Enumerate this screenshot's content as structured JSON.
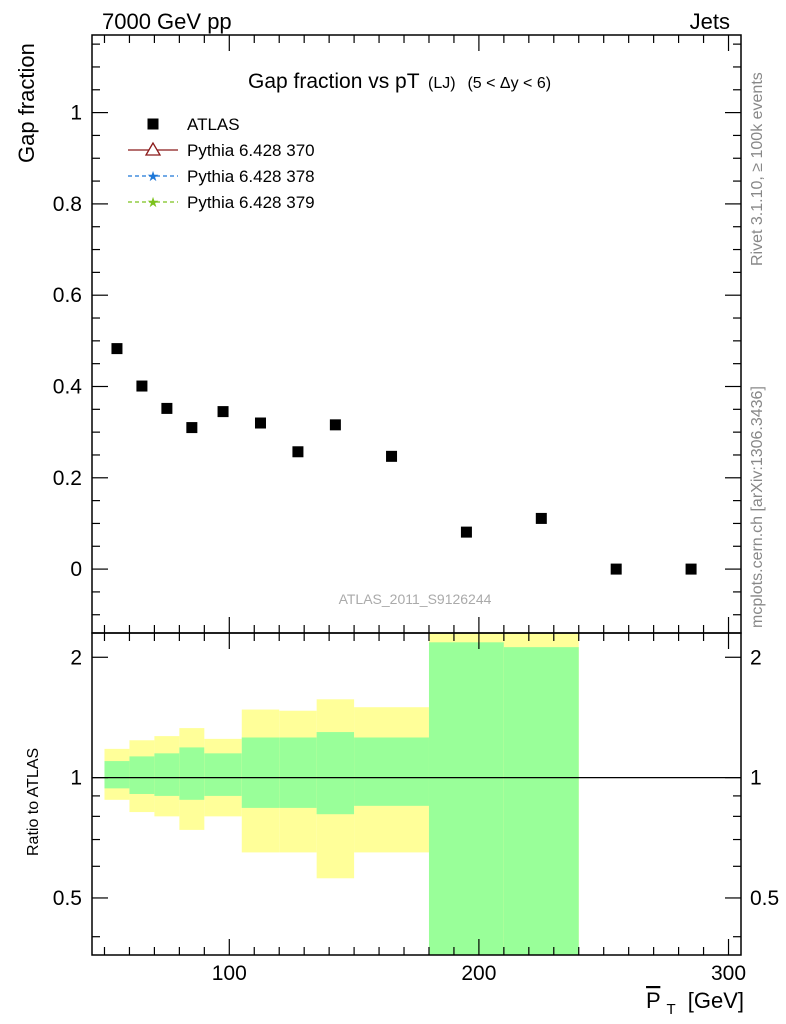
{
  "header": {
    "left": "7000 GeV pp",
    "right": "Jets"
  },
  "side_labels": {
    "rivet": "Rivet 3.1.10, ≥ 100k events",
    "mcplots": "mcplots.cern.ch [arXiv:1306.3436]"
  },
  "chart_data": {
    "type": "scatter",
    "title": "Gap fraction vs pT",
    "title_sub": "(LJ)",
    "title_cut": "(5 < Δy < 6)",
    "ylabel": "Gap fraction",
    "ratio_ylabel": "Ratio to ATLAS",
    "xlabel_symbol": "P",
    "xlabel_sub": "T",
    "xlabel_unit": "[GeV]",
    "watermark": "ATLAS_2011_S9126244",
    "xlim": [
      45,
      305
    ],
    "ylim": [
      -0.14,
      1.17
    ],
    "ratio_ylim": [
      0.36,
      2.3
    ],
    "x_ticks": [
      100,
      200,
      300
    ],
    "x_tick_labels": [
      "100",
      "200",
      "300"
    ],
    "y_ticks": [
      0,
      0.2,
      0.4,
      0.6,
      0.8,
      1
    ],
    "y_tick_labels": [
      "0",
      "0.2",
      "0.4",
      "0.6",
      "0.8",
      "1"
    ],
    "ratio_ticks": [
      0.5,
      1,
      2
    ],
    "ratio_tick_labels": [
      "0.5",
      "1",
      "2"
    ],
    "legend": [
      {
        "name": "ATLAS",
        "marker": "square",
        "color": "#000000"
      },
      {
        "name": "Pythia 6.428 370",
        "marker": "triangle",
        "color": "#8b1a1a"
      },
      {
        "name": "Pythia 6.428 378",
        "marker": "star",
        "color": "#1f78d8"
      },
      {
        "name": "Pythia 6.428 379",
        "marker": "star",
        "color": "#7cc21d"
      }
    ],
    "series": [
      {
        "name": "ATLAS",
        "x": [
          55,
          65,
          75,
          85,
          97.5,
          112.5,
          127.5,
          142.5,
          165,
          195,
          225,
          255,
          285
        ],
        "y": [
          0.483,
          0.401,
          0.352,
          0.31,
          0.345,
          0.32,
          0.257,
          0.316,
          0.247,
          0.081,
          0.111,
          0.0,
          0.0
        ]
      }
    ],
    "ratio_bands": [
      {
        "xlo": 50,
        "xhi": 60,
        "yellow": [
          0.88,
          1.18
        ],
        "green": [
          0.94,
          1.1
        ]
      },
      {
        "xlo": 60,
        "xhi": 70,
        "yellow": [
          0.82,
          1.24
        ],
        "green": [
          0.91,
          1.13
        ]
      },
      {
        "xlo": 70,
        "xhi": 80,
        "yellow": [
          0.8,
          1.27
        ],
        "green": [
          0.9,
          1.15
        ]
      },
      {
        "xlo": 80,
        "xhi": 90,
        "yellow": [
          0.74,
          1.33
        ],
        "green": [
          0.88,
          1.19
        ]
      },
      {
        "xlo": 90,
        "xhi": 105,
        "yellow": [
          0.8,
          1.25
        ],
        "green": [
          0.9,
          1.15
        ]
      },
      {
        "xlo": 105,
        "xhi": 120,
        "yellow": [
          0.65,
          1.48
        ],
        "green": [
          0.84,
          1.26
        ]
      },
      {
        "xlo": 120,
        "xhi": 135,
        "yellow": [
          0.65,
          1.47
        ],
        "green": [
          0.84,
          1.26
        ]
      },
      {
        "xlo": 135,
        "xhi": 150,
        "yellow": [
          0.56,
          1.57
        ],
        "green": [
          0.81,
          1.3
        ]
      },
      {
        "xlo": 150,
        "xhi": 180,
        "yellow": [
          0.65,
          1.5
        ],
        "green": [
          0.85,
          1.26
        ]
      },
      {
        "xlo": 180,
        "xhi": 210,
        "yellow": [
          0.36,
          2.3
        ],
        "green": [
          0.36,
          2.18
        ]
      },
      {
        "xlo": 210,
        "xhi": 240,
        "yellow": [
          0.36,
          2.3
        ],
        "green": [
          0.36,
          2.12
        ]
      }
    ],
    "colors": {
      "yellow": "#ffff99",
      "green": "#99ff99",
      "data": "#000000"
    }
  }
}
